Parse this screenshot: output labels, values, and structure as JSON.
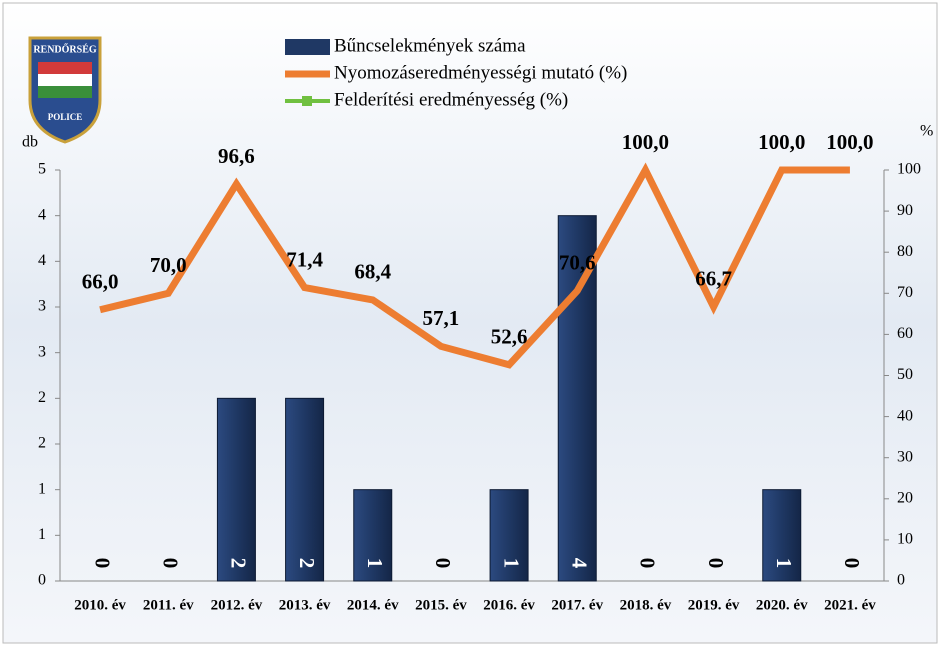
{
  "logo": {
    "top": "RENDŐRSÉG",
    "bottom": "POLICE"
  },
  "chart_data": {
    "type": "bar-line",
    "categories": [
      "2010. év",
      "2011. év",
      "2012. év",
      "2013. év",
      "2014. év",
      "2015. év",
      "2016. év",
      "2017. év",
      "2018. év",
      "2019. év",
      "2020. év",
      "2021. év"
    ],
    "y_label": "db",
    "y2_label": "%",
    "series": [
      {
        "name": "Bűncselekmények száma",
        "type": "bar",
        "color": "#1f3864",
        "values": [
          0,
          0,
          2,
          2,
          1,
          0,
          1,
          4,
          0,
          0,
          1,
          0
        ]
      },
      {
        "name": "Nyomozáseredményességi mutató (%)",
        "type": "line",
        "axis": "y2",
        "color": "#ed7d31",
        "values": [
          66,
          70,
          96.6,
          71.4,
          68.4,
          57.1,
          52.6,
          70.6,
          100,
          66.7,
          100,
          100
        ],
        "value_labels": [
          "66,0",
          "70,0",
          "96,6",
          "71,4",
          "68,4",
          "57,1",
          "52,6",
          "70,6",
          "100,0",
          "66,7",
          "100,0",
          "100,0"
        ]
      },
      {
        "name": "Felderítési eredményesség (%)",
        "type": "line",
        "axis": "y2",
        "color": "#70c040",
        "marker": true,
        "values": [
          null,
          null,
          null,
          null,
          null,
          null,
          null,
          null,
          null,
          null,
          null,
          null
        ]
      }
    ],
    "ylim": [
      0,
      4.5
    ],
    "yticks": [
      0,
      {
        "value": 0.5,
        "label": "1"
      },
      1,
      {
        "value": 1.5,
        "label": "2"
      },
      2,
      {
        "value": 2.5,
        "label": "3"
      },
      3,
      {
        "value": 3.5,
        "label": "4"
      },
      4,
      {
        "value": 4.5,
        "label": "5"
      }
    ],
    "y2lim": [
      0,
      100
    ],
    "y2ticks": [
      0,
      10,
      20,
      30,
      40,
      50,
      60,
      70,
      80,
      90,
      100
    ]
  }
}
